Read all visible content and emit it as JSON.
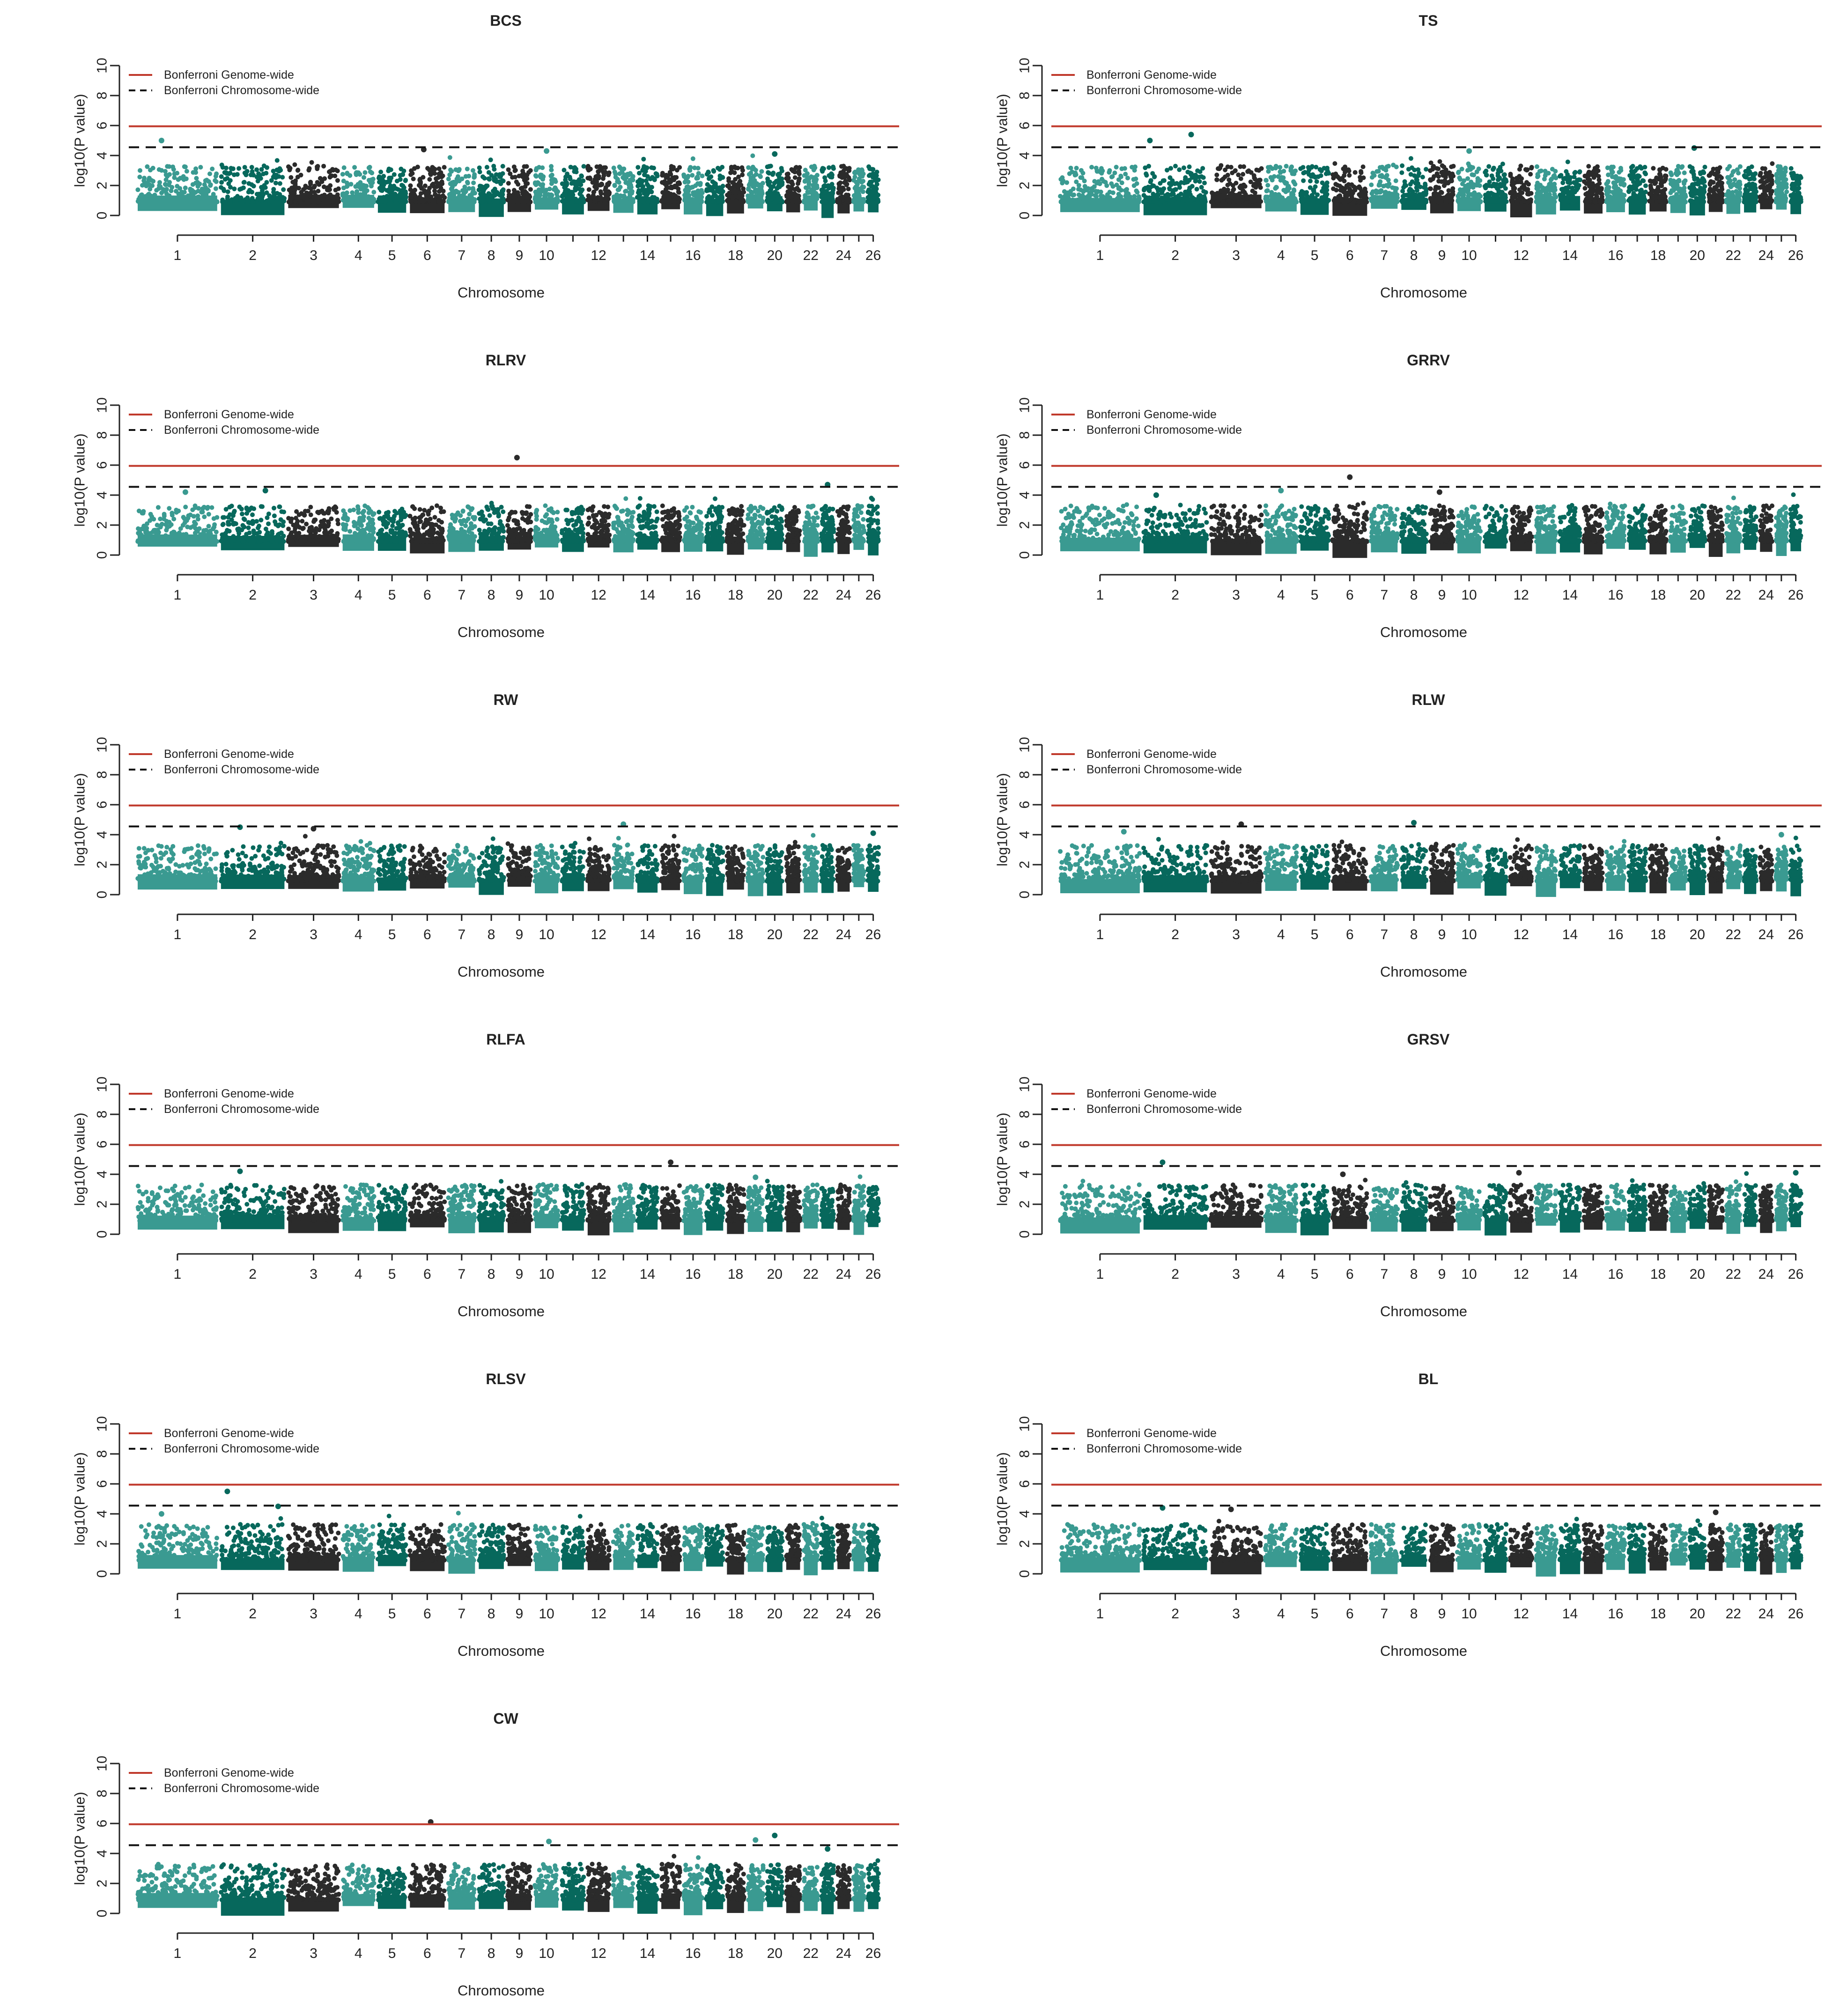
{
  "chart_data": {
    "type": "scatter",
    "figure_kind": "manhattan-plot-grid",
    "shared": {
      "xlabel": "Chromosome",
      "ylabel": "log10(P value)",
      "ylim": [
        0,
        10
      ],
      "yticks": [
        0,
        2,
        4,
        6,
        8,
        10
      ],
      "chromosomes": [
        "1",
        "2",
        "3",
        "4",
        "5",
        "6",
        "7",
        "8",
        "9",
        "10",
        "11",
        "12",
        "13",
        "14",
        "15",
        "16",
        "17",
        "18",
        "19",
        "20",
        "21",
        "22",
        "23",
        "24",
        "25",
        "26"
      ],
      "chromosome_widths": [
        2.6,
        2.1,
        1.7,
        1.1,
        1.0,
        1.2,
        0.95,
        0.9,
        0.85,
        0.85,
        0.8,
        0.8,
        0.75,
        0.75,
        0.7,
        0.7,
        0.65,
        0.65,
        0.6,
        0.6,
        0.55,
        0.55,
        0.5,
        0.5,
        0.45,
        0.45
      ],
      "chromosome_labels_shown": [
        "1",
        "2",
        "3",
        "4",
        "5",
        "6",
        "7",
        "8",
        "9",
        "10",
        "",
        "12",
        "",
        "14",
        "",
        "16",
        "",
        "18",
        "",
        "20",
        "",
        "22",
        "",
        "24",
        "",
        "26"
      ],
      "chromosome_colors": [
        "#3a9a91",
        "#07685c",
        "#2b2b2b"
      ],
      "legend": [
        {
          "label": "Bonferroni Genome-wide",
          "style": "solid",
          "color": "#c0392b"
        },
        {
          "label": "Bonferroni Chromosome-wide",
          "style": "dashed",
          "color": "#111111"
        }
      ],
      "legend_position": "top-left",
      "genome_wide_threshold": 5.95,
      "chromosome_wide_threshold": 4.55
    },
    "panels": [
      {
        "title": "BCS",
        "peaks": [
          {
            "chr": 1,
            "pos": 0.3,
            "p": 5.0
          },
          {
            "chr": 6,
            "pos": 0.4,
            "p": 4.4
          },
          {
            "chr": 10,
            "pos": 0.5,
            "p": 4.3
          },
          {
            "chr": 20,
            "pos": 0.5,
            "p": 4.1
          }
        ]
      },
      {
        "title": "TS",
        "peaks": [
          {
            "chr": 2,
            "pos": 0.1,
            "p": 5.0
          },
          {
            "chr": 2,
            "pos": 0.75,
            "p": 5.4
          },
          {
            "chr": 10,
            "pos": 0.5,
            "p": 4.3
          },
          {
            "chr": 20,
            "pos": 0.3,
            "p": 4.5
          }
        ]
      },
      {
        "title": "RLRV",
        "peaks": [
          {
            "chr": 9,
            "pos": 0.4,
            "p": 6.5
          },
          {
            "chr": 23,
            "pos": 0.5,
            "p": 4.7
          },
          {
            "chr": 1,
            "pos": 0.6,
            "p": 4.2
          },
          {
            "chr": 2,
            "pos": 0.7,
            "p": 4.3
          }
        ]
      },
      {
        "title": "GRRV",
        "peaks": [
          {
            "chr": 6,
            "pos": 0.5,
            "p": 5.2
          },
          {
            "chr": 4,
            "pos": 0.5,
            "p": 4.3
          },
          {
            "chr": 9,
            "pos": 0.4,
            "p": 4.2
          },
          {
            "chr": 2,
            "pos": 0.2,
            "p": 4.0
          }
        ]
      },
      {
        "title": "RW",
        "peaks": [
          {
            "chr": 13,
            "pos": 0.5,
            "p": 4.7
          },
          {
            "chr": 2,
            "pos": 0.3,
            "p": 4.5
          },
          {
            "chr": 3,
            "pos": 0.5,
            "p": 4.4
          },
          {
            "chr": 26,
            "pos": 0.5,
            "p": 4.1
          }
        ]
      },
      {
        "title": "RLW",
        "peaks": [
          {
            "chr": 8,
            "pos": 0.5,
            "p": 4.8
          },
          {
            "chr": 3,
            "pos": 0.6,
            "p": 4.7
          },
          {
            "chr": 1,
            "pos": 0.8,
            "p": 4.2
          },
          {
            "chr": 25,
            "pos": 0.5,
            "p": 4.0
          }
        ]
      },
      {
        "title": "RLFA",
        "peaks": [
          {
            "chr": 15,
            "pos": 0.5,
            "p": 4.8
          },
          {
            "chr": 2,
            "pos": 0.3,
            "p": 4.2
          },
          {
            "chr": 19,
            "pos": 0.5,
            "p": 3.8
          }
        ]
      },
      {
        "title": "GRSV",
        "peaks": [
          {
            "chr": 2,
            "pos": 0.3,
            "p": 4.8
          },
          {
            "chr": 26,
            "pos": 0.5,
            "p": 4.1
          },
          {
            "chr": 6,
            "pos": 0.3,
            "p": 4.0
          },
          {
            "chr": 12,
            "pos": 0.4,
            "p": 4.1
          }
        ]
      },
      {
        "title": "RLSV",
        "peaks": [
          {
            "chr": 2,
            "pos": 0.1,
            "p": 5.5
          },
          {
            "chr": 2,
            "pos": 0.9,
            "p": 4.5
          },
          {
            "chr": 1,
            "pos": 0.3,
            "p": 4.0
          }
        ]
      },
      {
        "title": "BL",
        "peaks": [
          {
            "chr": 2,
            "pos": 0.3,
            "p": 4.4
          },
          {
            "chr": 3,
            "pos": 0.4,
            "p": 4.3
          },
          {
            "chr": 21,
            "pos": 0.5,
            "p": 4.1
          }
        ]
      },
      {
        "title": "CW",
        "peaks": [
          {
            "chr": 6,
            "pos": 0.6,
            "p": 6.1
          },
          {
            "chr": 20,
            "pos": 0.5,
            "p": 5.2
          },
          {
            "chr": 19,
            "pos": 0.5,
            "p": 4.9
          },
          {
            "chr": 10,
            "pos": 0.6,
            "p": 4.8
          },
          {
            "chr": 23,
            "pos": 0.5,
            "p": 4.3
          }
        ]
      }
    ]
  }
}
